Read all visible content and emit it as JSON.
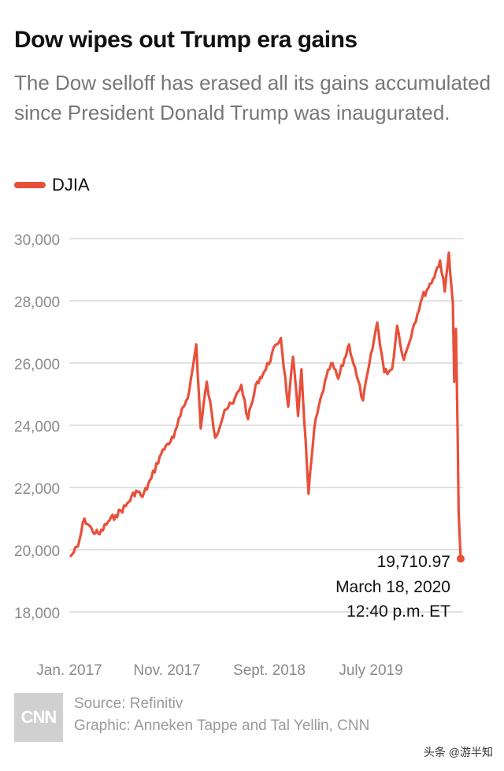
{
  "header": {
    "title": "Dow wipes out Trump era gains",
    "subtitle": "The Dow selloff has erased all its gains accumulated since President Donald Trump was inaugurated."
  },
  "legend": {
    "label": "DJIA",
    "color": "#e8503a"
  },
  "annotation": {
    "value": "19,710.97",
    "date": "March 18, 2020",
    "time": "12:40 p.m. ET"
  },
  "footer": {
    "logo": "CNN",
    "source": "Source: Refinitiv",
    "graphic": "Graphic: Anneken Tappe and Tal Yellin, CNN"
  },
  "watermark": "头条 @游半知",
  "chart_data": {
    "type": "line",
    "title": "Dow wipes out Trump era gains",
    "xlabel": "",
    "ylabel": "",
    "grid": true,
    "legend_position": "top-left",
    "ylim": [
      18000,
      30500
    ],
    "y_ticks": [
      30000,
      28000,
      26000,
      24000,
      22000,
      20000,
      18000
    ],
    "y_tick_labels": [
      "30,000",
      "28,000",
      "26,000",
      "24,000",
      "22,000",
      "20,000",
      "18,000"
    ],
    "x_tick_labels": [
      {
        "label": "Jan. 2017",
        "x": "2017-01"
      },
      {
        "label": "Nov. 2017",
        "x": "2017-11"
      },
      {
        "label": "Sept. 2018",
        "x": "2018-09"
      },
      {
        "label": "July 2019",
        "x": "2019-07"
      }
    ],
    "series": [
      {
        "name": "DJIA",
        "color": "#e8503a",
        "points": [
          [
            "2017-01-20",
            19800
          ],
          [
            "2017-02-10",
            20100
          ],
          [
            "2017-03-01",
            21000
          ],
          [
            "2017-03-25",
            20600
          ],
          [
            "2017-04-15",
            20500
          ],
          [
            "2017-05-10",
            20900
          ],
          [
            "2017-06-01",
            21100
          ],
          [
            "2017-07-01",
            21400
          ],
          [
            "2017-08-01",
            21900
          ],
          [
            "2017-08-20",
            21700
          ],
          [
            "2017-09-15",
            22300
          ],
          [
            "2017-10-10",
            23000
          ],
          [
            "2017-11-01",
            23400
          ],
          [
            "2017-11-20",
            23600
          ],
          [
            "2017-12-10",
            24300
          ],
          [
            "2018-01-05",
            25100
          ],
          [
            "2018-01-26",
            26600
          ],
          [
            "2018-02-08",
            23900
          ],
          [
            "2018-02-26",
            25400
          ],
          [
            "2018-03-23",
            23600
          ],
          [
            "2018-04-20",
            24500
          ],
          [
            "2018-05-15",
            24700
          ],
          [
            "2018-06-08",
            25300
          ],
          [
            "2018-06-28",
            24200
          ],
          [
            "2018-07-25",
            25400
          ],
          [
            "2018-08-20",
            25800
          ],
          [
            "2018-09-20",
            26600
          ],
          [
            "2018-10-03",
            26800
          ],
          [
            "2018-10-25",
            24600
          ],
          [
            "2018-11-08",
            26200
          ],
          [
            "2018-11-23",
            24300
          ],
          [
            "2018-12-03",
            25800
          ],
          [
            "2018-12-24",
            21800
          ],
          [
            "2019-01-10",
            23900
          ],
          [
            "2019-02-01",
            25000
          ],
          [
            "2019-03-01",
            26000
          ],
          [
            "2019-03-22",
            25500
          ],
          [
            "2019-04-23",
            26600
          ],
          [
            "2019-05-15",
            25600
          ],
          [
            "2019-06-03",
            24800
          ],
          [
            "2019-07-15",
            27300
          ],
          [
            "2019-08-05",
            25700
          ],
          [
            "2019-08-28",
            25800
          ],
          [
            "2019-09-12",
            27200
          ],
          [
            "2019-10-02",
            26100
          ],
          [
            "2019-10-28",
            27100
          ],
          [
            "2019-11-25",
            28100
          ],
          [
            "2019-12-27",
            28700
          ],
          [
            "2020-01-17",
            29300
          ],
          [
            "2020-01-31",
            28300
          ],
          [
            "2020-02-12",
            29550
          ],
          [
            "2020-02-24",
            27900
          ],
          [
            "2020-02-28",
            25400
          ],
          [
            "2020-03-04",
            27100
          ],
          [
            "2020-03-09",
            23800
          ],
          [
            "2020-03-12",
            21200
          ],
          [
            "2020-03-16",
            20200
          ],
          [
            "2020-03-18",
            19710.97
          ]
        ]
      }
    ],
    "annotation_point": [
      "2020-03-18",
      19710.97
    ]
  }
}
